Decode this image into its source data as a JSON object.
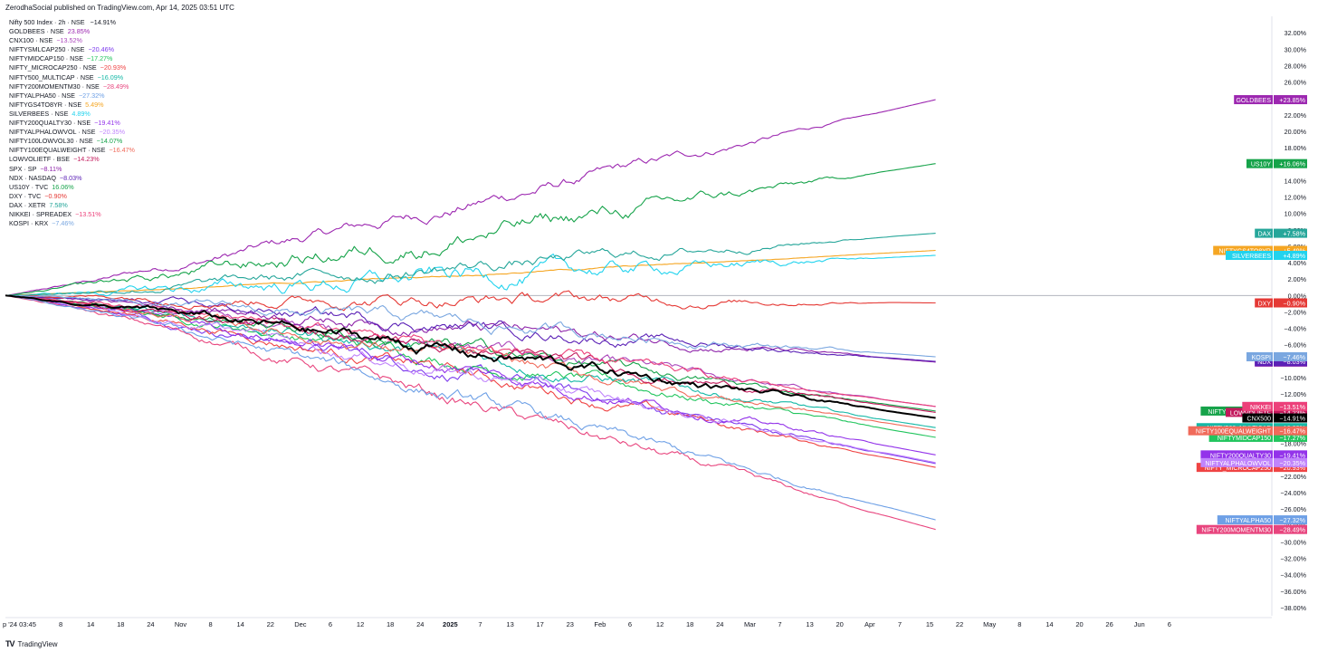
{
  "header": {
    "published": "ZerodhaSocial published on TradingView.com, Apr 14, 2025 03:51 UTC"
  },
  "footer": {
    "logo": "TradingView",
    "logo_mark": "TV"
  },
  "colors": {
    "zero_line": "#b2b5be",
    "grid": "#f0f3fa",
    "text": "#131722"
  },
  "chart_data": {
    "type": "line",
    "subtype": "percent-change comparison",
    "ylim": [
      -39,
      34
    ],
    "y_ticks": [
      "32.00%",
      "30.00%",
      "28.00%",
      "26.00%",
      "24.00%",
      "22.00%",
      "20.00%",
      "18.00%",
      "16.00%",
      "14.00%",
      "12.00%",
      "10.00%",
      "8.00%",
      "6.00%",
      "4.00%",
      "2.00%",
      "0.00%",
      "−2.00%",
      "−4.00%",
      "−6.00%",
      "−8.00%",
      "−10.00%",
      "−12.00%",
      "−14.00%",
      "−16.00%",
      "−18.00%",
      "−20.00%",
      "−22.00%",
      "−24.00%",
      "−26.00%",
      "−28.00%",
      "−30.00%",
      "−32.00%",
      "−34.00%",
      "−36.00%",
      "−38.00%"
    ],
    "x_ticks": [
      "p '24  03:45",
      "8",
      "14",
      "18",
      "24",
      "Nov",
      "8",
      "14",
      "22",
      "Dec",
      "6",
      "12",
      "18",
      "24",
      "2025",
      "7",
      "13",
      "17",
      "23",
      "Feb",
      "6",
      "12",
      "18",
      "24",
      "Mar",
      "7",
      "13",
      "20",
      "Apr",
      "7",
      "15",
      "22",
      "May",
      "8",
      "14",
      "20",
      "26",
      "Jun",
      "6"
    ],
    "x_start_label": "p '24  03:45",
    "x_end_index": 30.2,
    "legend_title": {
      "name": "Nifty 500 Index · 2h · NSE",
      "value": "−14.91%"
    },
    "series": [
      {
        "name": "GOLDBEES · NSE",
        "tag": "GOLDBEES",
        "value": "+23.85%",
        "legend_value": "23.85%",
        "final": 23.85,
        "color": "#9c27b0"
      },
      {
        "name": "CNX100 · NSE",
        "tag": "CNX100",
        "value": "−13.52%",
        "legend_value": "−13.52%",
        "final": -13.52,
        "color": "#ab47bc"
      },
      {
        "name": "NIFTYSMLCAP250 · NSE",
        "tag": "NIFTYSMLCAP250",
        "value": "−20.46%",
        "legend_value": "−20.46%",
        "final": -20.46,
        "color": "#7c3aed"
      },
      {
        "name": "NIFTYMIDCAP150 · NSE",
        "tag": "NIFTYMIDCAP150",
        "value": "−17.27%",
        "legend_value": "−17.27%",
        "final": -17.27,
        "color": "#22c55e"
      },
      {
        "name": "NIFTY_MICROCAP250 · NSE",
        "tag": "NIFTY_MICROCAP250",
        "value": "−20.93%",
        "legend_value": "−20.93%",
        "final": -20.93,
        "color": "#ef4444"
      },
      {
        "name": "NIFTY500_MULTICAP · NSE",
        "tag": "NIFTY500_MULTICAP",
        "value": "−16.09%",
        "legend_value": "−16.09%",
        "final": -16.09,
        "color": "#14b8a6"
      },
      {
        "name": "NIFTY200MOMENTM30 · NSE",
        "tag": "NIFTY200MOMENTM30",
        "value": "−28.49%",
        "legend_value": "−28.49%",
        "final": -28.49,
        "color": "#e8457e"
      },
      {
        "name": "NIFTYALPHA50 · NSE",
        "tag": "NIFTYALPHA50",
        "value": "−27.32%",
        "legend_value": "−27.32%",
        "final": -27.32,
        "color": "#6ea0e6"
      },
      {
        "name": "NIFTYGS4TO8YR · NSE",
        "tag": "NIFTYGS4TO8YR",
        "value": "+5.49%",
        "legend_value": "5.49%",
        "final": 5.49,
        "color": "#f5a623"
      },
      {
        "name": "SILVERBEES · NSE",
        "tag": "SILVERBEES",
        "value": "+4.89%",
        "legend_value": "4.89%",
        "final": 4.89,
        "color": "#22d3ee"
      },
      {
        "name": "NIFTY200QUALTY30 · NSE",
        "tag": "NIFTY200QUALTY30",
        "value": "−19.41%",
        "legend_value": "−19.41%",
        "final": -19.41,
        "color": "#9333ea"
      },
      {
        "name": "NIFTYALPHALOWVOL · NSE",
        "tag": "NIFTYALPHALOWVOL",
        "value": "−20.35%",
        "legend_value": "−20.35%",
        "final": -20.35,
        "color": "#c084fc"
      },
      {
        "name": "NIFTY100LOWVOL30 · NSE",
        "tag": "NIFTY100LOWVOL30",
        "value": "−14.07%",
        "legend_value": "−14.07%",
        "final": -14.07,
        "color": "#16a34a"
      },
      {
        "name": "NIFTY100EQUALWEIGHT · NSE",
        "tag": "NIFTY100EQUALWEIGHT",
        "value": "−16.47%",
        "legend_value": "−16.47%",
        "final": -16.47,
        "color": "#f06a5a"
      },
      {
        "name": "LOWVOLIETF · BSE",
        "tag": "LOWVOLIETF",
        "value": "−14.23%",
        "legend_value": "−14.23%",
        "final": -14.23,
        "color": "#c2185b"
      },
      {
        "name": "SPX · SP",
        "tag": "SPX",
        "value": "−8.11%",
        "legend_value": "−8.11%",
        "final": -8.11,
        "color": "#8e24aa"
      },
      {
        "name": "NDX · NASDAQ",
        "tag": "NDX",
        "value": "−8.03%",
        "legend_value": "−8.03%",
        "final": -8.03,
        "color": "#5b21b6"
      },
      {
        "name": "US10Y · TVC",
        "tag": "US10Y",
        "value": "+16.06%",
        "legend_value": "16.06%",
        "final": 16.06,
        "color": "#16a34a"
      },
      {
        "name": "DXY · TVC",
        "tag": "DXY",
        "value": "−0.90%",
        "legend_value": "−0.90%",
        "final": -0.9,
        "color": "#e53935"
      },
      {
        "name": "DAX · XETR",
        "tag": "DAX",
        "value": "+7.58%",
        "legend_value": "7.58%",
        "final": 7.58,
        "color": "#26a69a"
      },
      {
        "name": "NIKKEI · SPREADEX",
        "tag": "NIKKEI",
        "value": "−13.51%",
        "legend_value": "−13.51%",
        "final": -13.51,
        "color": "#ec407a"
      },
      {
        "name": "KOSPI · KRX",
        "tag": "KOSPI",
        "value": "−7.46%",
        "legend_value": "−7.46%",
        "final": -7.46,
        "color": "#7aa7e0"
      },
      {
        "name": "Nifty 500 Index",
        "tag": "CNX500",
        "value": "−14.91%",
        "legend_value": "−14.91%",
        "final": -14.91,
        "color": "#000000",
        "main": true
      }
    ]
  }
}
